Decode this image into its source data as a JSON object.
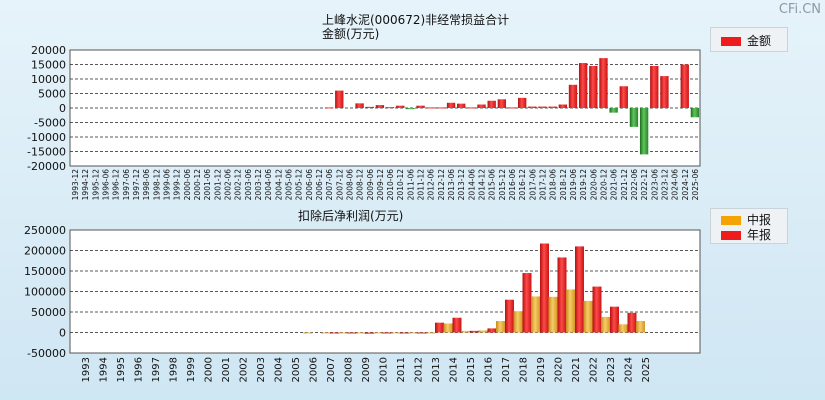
{
  "watermark": "CFi.CN",
  "charts": {
    "top": {
      "title": "上峰水泥(000672)非经常损益合计",
      "ylabel": "金额(万元)",
      "legend": "金额",
      "ylim": [
        -20000,
        20000
      ],
      "yticks": [
        20000,
        15000,
        10000,
        5000,
        0,
        -5000,
        -10000,
        -15000,
        -20000
      ],
      "xlabels": [
        "1993-12",
        "1994-12",
        "1995-12",
        "1996-06",
        "1996-12",
        "1997-06",
        "1997-12",
        "1998-06",
        "1998-12",
        "1999-06",
        "1999-12",
        "2000-06",
        "2000-12",
        "2001-06",
        "2001-12",
        "2002-06",
        "2002-12",
        "2003-06",
        "2003-12",
        "2004-06",
        "2004-12",
        "2005-06",
        "2005-12",
        "2006-06",
        "2006-12",
        "2007-06",
        "2007-12",
        "2008-06",
        "2008-12",
        "2009-06",
        "2009-12",
        "2010-06",
        "2010-12",
        "2011-06",
        "2011-12",
        "2012-06",
        "2012-12",
        "2013-06",
        "2013-12",
        "2014-06",
        "2014-12",
        "2015-06",
        "2015-12",
        "2016-06",
        "2016-12",
        "2017-06",
        "2017-12",
        "2018-06",
        "2018-12",
        "2019-06",
        "2019-12",
        "2020-06",
        "2020-12",
        "2021-06",
        "2021-12",
        "2022-06",
        "2022-12",
        "2023-06",
        "2023-12",
        "2024-06",
        "2024-12",
        "2025-06"
      ],
      "values": [
        0,
        0,
        0,
        0,
        0,
        0,
        0,
        0,
        0,
        0,
        0,
        0,
        0,
        0,
        0,
        0,
        0,
        0,
        0,
        0,
        0,
        0,
        0,
        0,
        0,
        200,
        6000,
        0,
        1600,
        400,
        1000,
        300,
        800,
        -400,
        800,
        200,
        200,
        1800,
        1500,
        200,
        1200,
        2500,
        3000,
        200,
        3500,
        500,
        500,
        500,
        1200,
        8000,
        15500,
        14500,
        17200,
        -1600,
        7500,
        -6500,
        -16000,
        14500,
        11000,
        0,
        15000,
        -3200
      ]
    },
    "bottom": {
      "title": "扣除后净利润(万元)",
      "legend": [
        "中报",
        "年报"
      ],
      "ylim": [
        -50000,
        250000
      ],
      "yticks": [
        250000,
        200000,
        150000,
        100000,
        50000,
        0,
        -50000
      ],
      "years": [
        "1993",
        "1994",
        "1995",
        "1996",
        "1997",
        "1998",
        "1999",
        "2000",
        "2001",
        "2002",
        "2003",
        "2004",
        "2005",
        "2006",
        "2007",
        "2008",
        "2009",
        "2010",
        "2011",
        "2012",
        "2013",
        "2014",
        "2015",
        "2016",
        "2017",
        "2018",
        "2019",
        "2020",
        "2021",
        "2022",
        "2023",
        "2024",
        "2025"
      ],
      "interim": [
        null,
        null,
        null,
        null,
        null,
        null,
        null,
        null,
        null,
        null,
        null,
        null,
        null,
        -1500,
        -2000,
        -2500,
        -2500,
        -2000,
        -2500,
        -2500,
        -1500,
        22000,
        4000,
        5000,
        28000,
        52000,
        88000,
        87000,
        105000,
        77000,
        38000,
        20000,
        28000
      ],
      "annual": [
        null,
        null,
        null,
        null,
        null,
        null,
        null,
        null,
        null,
        null,
        null,
        null,
        null,
        null,
        -2000,
        -2500,
        -3000,
        -2500,
        -2500,
        -2500,
        24000,
        36000,
        4000,
        10000,
        80000,
        145000,
        217000,
        183000,
        210000,
        112000,
        63000,
        48000,
        null
      ]
    }
  }
}
